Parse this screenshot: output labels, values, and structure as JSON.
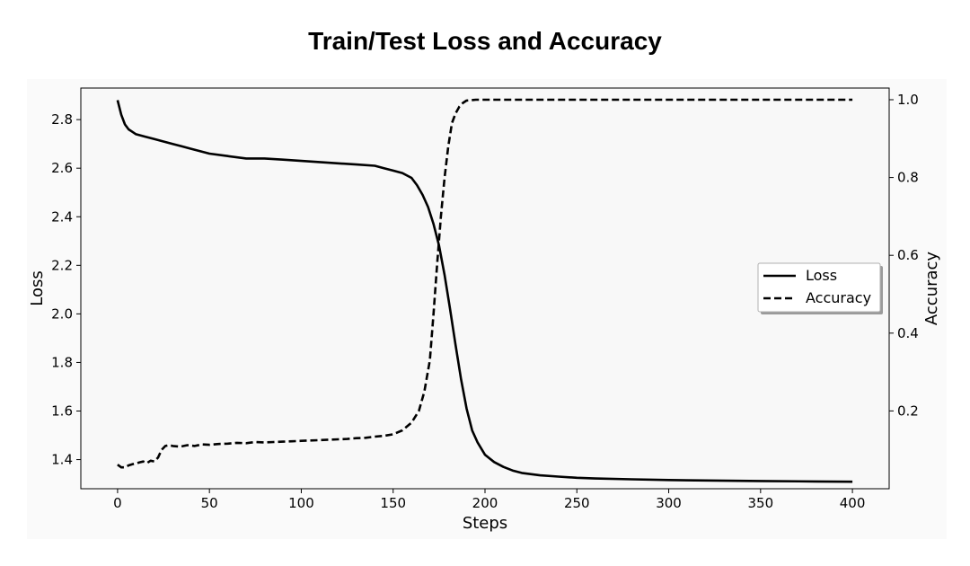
{
  "chart_data": {
    "type": "line",
    "title": "Train/Test Loss and Accuracy",
    "xlabel": "Steps",
    "ylabel_left": "Loss",
    "ylabel_right": "Accuracy",
    "xlim": [
      -20,
      420
    ],
    "ylim_left": [
      1.28,
      2.93
    ],
    "ylim_right": [
      0.0,
      1.03
    ],
    "xticks": [
      0,
      50,
      100,
      150,
      200,
      250,
      300,
      350,
      400
    ],
    "yticks_left": [
      1.4,
      1.6,
      1.8,
      2.0,
      2.2,
      2.4,
      2.6,
      2.8
    ],
    "yticks_right": [
      0.2,
      0.4,
      0.6,
      0.8,
      1.0
    ],
    "yticks_left_labels": [
      "1.4",
      "1.6",
      "1.8",
      "2.0",
      "2.2",
      "2.4",
      "2.6",
      "2.8"
    ],
    "yticks_right_labels": [
      "0.2",
      "0.4",
      "0.6",
      "0.8",
      "1.0"
    ],
    "grid": false,
    "legend_position": "center-right",
    "series": [
      {
        "name": "Loss",
        "axis": "left",
        "style": "solid",
        "color": "#000000",
        "x": [
          0,
          2,
          4,
          6,
          8,
          10,
          15,
          20,
          25,
          30,
          35,
          40,
          50,
          60,
          70,
          80,
          90,
          100,
          110,
          120,
          130,
          140,
          145,
          150,
          155,
          160,
          163,
          166,
          169,
          172,
          175,
          178,
          181,
          184,
          187,
          190,
          193,
          196,
          200,
          205,
          210,
          215,
          220,
          230,
          240,
          250,
          260,
          280,
          300,
          320,
          350,
          380,
          400
        ],
        "y": [
          2.88,
          2.82,
          2.78,
          2.76,
          2.75,
          2.74,
          2.73,
          2.72,
          2.71,
          2.7,
          2.69,
          2.68,
          2.66,
          2.65,
          2.64,
          2.64,
          2.635,
          2.63,
          2.625,
          2.62,
          2.615,
          2.61,
          2.6,
          2.59,
          2.58,
          2.56,
          2.53,
          2.49,
          2.44,
          2.37,
          2.28,
          2.16,
          2.02,
          1.87,
          1.73,
          1.61,
          1.52,
          1.47,
          1.42,
          1.39,
          1.37,
          1.355,
          1.345,
          1.335,
          1.33,
          1.325,
          1.322,
          1.319,
          1.316,
          1.314,
          1.312,
          1.31,
          1.309
        ]
      },
      {
        "name": "Accuracy",
        "axis": "right",
        "style": "dashed",
        "color": "#000000",
        "x": [
          0,
          2,
          4,
          6,
          8,
          10,
          12,
          14,
          16,
          18,
          20,
          22,
          24,
          26,
          28,
          30,
          34,
          38,
          42,
          46,
          50,
          55,
          60,
          65,
          70,
          75,
          80,
          85,
          90,
          95,
          100,
          105,
          110,
          115,
          120,
          125,
          130,
          135,
          140,
          145,
          150,
          155,
          160,
          164,
          167,
          170,
          172,
          174,
          176,
          178,
          180,
          182,
          184,
          186,
          188,
          190,
          195,
          200,
          250,
          300,
          350,
          400
        ],
        "y": [
          0.062,
          0.055,
          0.055,
          0.06,
          0.063,
          0.065,
          0.068,
          0.07,
          0.066,
          0.072,
          0.07,
          0.08,
          0.1,
          0.11,
          0.112,
          0.11,
          0.108,
          0.112,
          0.11,
          0.114,
          0.113,
          0.115,
          0.116,
          0.118,
          0.117,
          0.12,
          0.119,
          0.12,
          0.121,
          0.122,
          0.123,
          0.124,
          0.125,
          0.126,
          0.127,
          0.128,
          0.13,
          0.131,
          0.134,
          0.136,
          0.14,
          0.15,
          0.17,
          0.2,
          0.25,
          0.33,
          0.45,
          0.58,
          0.7,
          0.8,
          0.88,
          0.94,
          0.965,
          0.982,
          0.992,
          0.998,
          1.0,
          1.0,
          1.0,
          1.0,
          1.0,
          1.0
        ]
      }
    ]
  }
}
